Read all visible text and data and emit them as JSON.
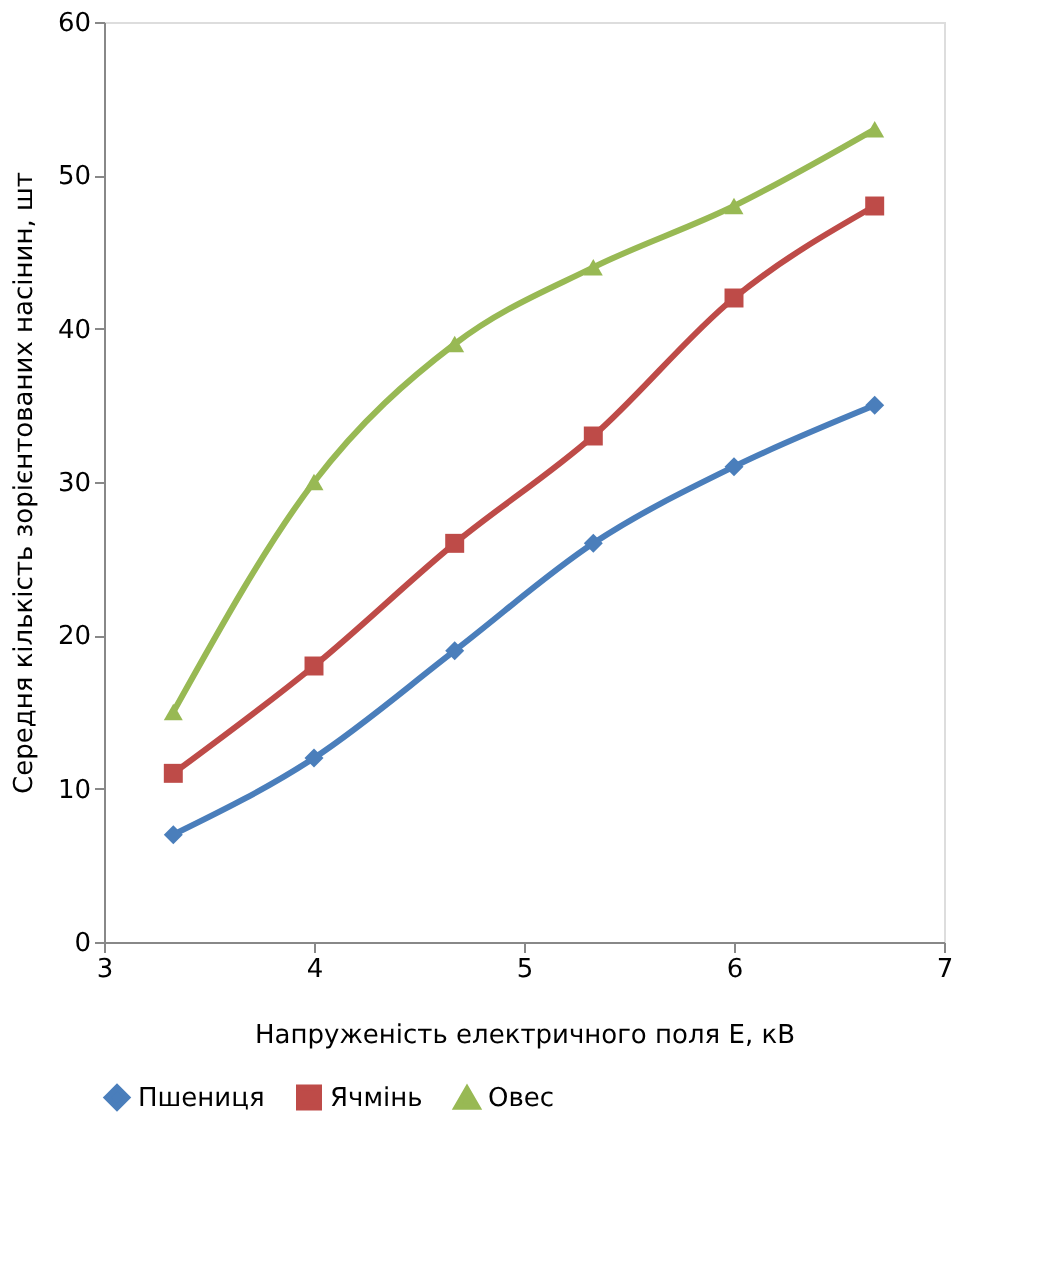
{
  "chart_data": {
    "type": "line",
    "xlabel": "Напруженість електричного поля E, кВ",
    "ylabel": "Середня кількість зорієнтованих насінин, шт",
    "x": [
      3.33,
      4,
      4.67,
      5.33,
      6,
      6.67
    ],
    "series": [
      {
        "name": "Пшениця",
        "color": "#4a7ebb",
        "marker": "diamond",
        "values": [
          7,
          12,
          19,
          26,
          31,
          35
        ]
      },
      {
        "name": "Ячмінь",
        "color": "#be4b48",
        "marker": "square",
        "values": [
          11,
          18,
          26,
          33,
          42,
          48
        ]
      },
      {
        "name": "Овес",
        "color": "#98b954",
        "marker": "triangle",
        "values": [
          15,
          30,
          39,
          44,
          48,
          53
        ]
      }
    ],
    "xlim": [
      3,
      7
    ],
    "xticks": [
      3,
      4,
      5,
      6,
      7
    ],
    "ylim": [
      0,
      60
    ],
    "yticks": [
      0,
      10,
      20,
      30,
      40,
      50,
      60
    ],
    "grid": false,
    "legend": "bottom"
  }
}
